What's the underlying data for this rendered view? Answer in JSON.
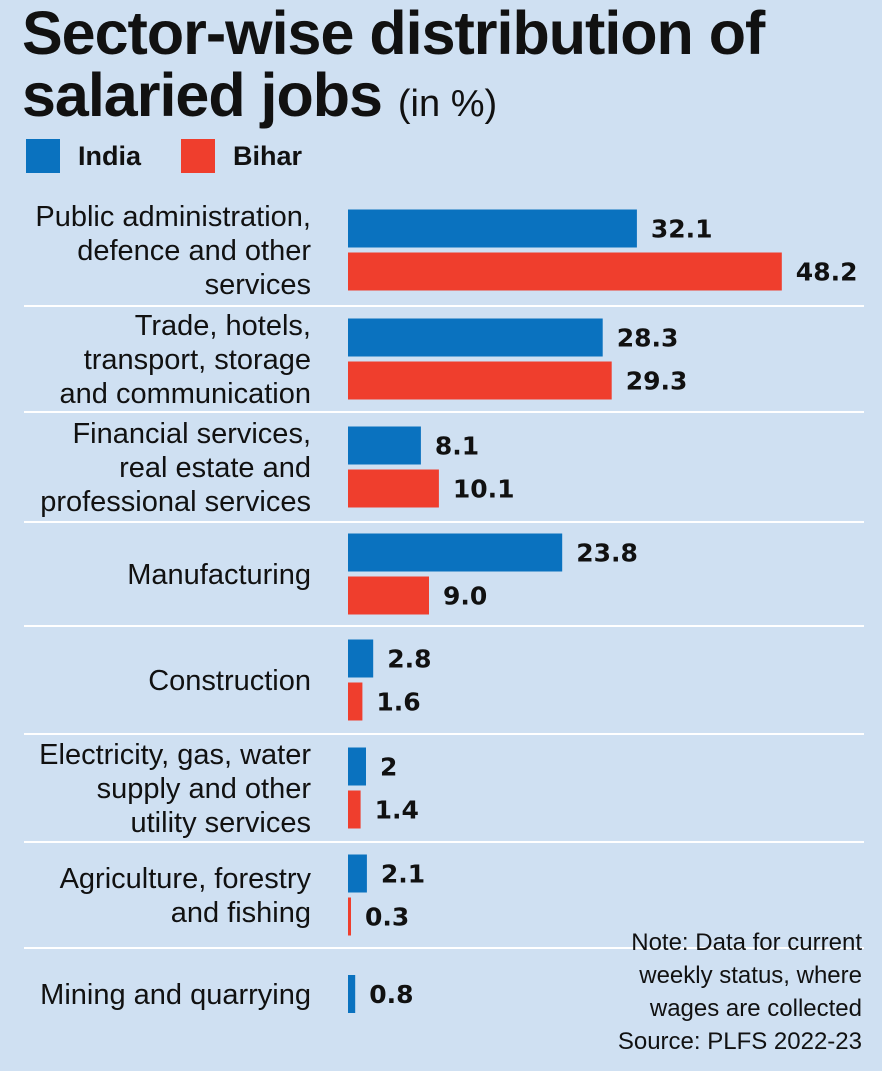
{
  "title": {
    "main": "Sector-wise distribution of salaried jobs",
    "unit": "(in %)"
  },
  "legend": {
    "india": "India",
    "bihar": "Bihar"
  },
  "colors": {
    "india": "#0a72bf",
    "bihar": "#ef3e2d",
    "background": "#cfe0f2",
    "divider": "#ffffff"
  },
  "note": {
    "lines": [
      "Note: Data for current",
      "weekly status, where",
      "wages are collected"
    ],
    "source": "Source: PLFS 2022-23"
  },
  "chart_data": {
    "type": "bar",
    "orientation": "horizontal",
    "title": "Sector-wise distribution of salaried jobs (in %)",
    "categories": [
      "Public administration, defence and other services",
      "Trade, hotels, transport, storage and communication",
      "Financial services, real estate and professional services",
      "Manufacturing",
      "Construction",
      "Electricity, gas, water supply and other utility services",
      "Agriculture, forestry and fishing",
      "Mining and quarrying"
    ],
    "category_lines": [
      [
        "Public administration,",
        "defence and other",
        "services"
      ],
      [
        "Trade, hotels,",
        "transport, storage",
        "and communication"
      ],
      [
        "Financial services,",
        "real estate and",
        "professional services"
      ],
      [
        "Manufacturing"
      ],
      [
        "Construction"
      ],
      [
        "Electricity, gas, water",
        "supply and other",
        "utility services"
      ],
      [
        "Agriculture, forestry",
        "and fishing"
      ],
      [
        "Mining and quarrying"
      ]
    ],
    "series": [
      {
        "name": "India",
        "values": [
          32.1,
          28.3,
          8.1,
          23.8,
          2.8,
          2,
          2.1,
          0.8
        ],
        "labels": [
          "32.1",
          "28.3",
          "8.1",
          "23.8",
          "2.8",
          "2",
          "2.1",
          "0.8"
        ]
      },
      {
        "name": "Bihar",
        "values": [
          48.2,
          29.3,
          10.1,
          9.0,
          1.6,
          1.4,
          0.3,
          null
        ],
        "labels": [
          "48.2",
          "29.3",
          "10.1",
          "9.0",
          "1.6",
          "1.4",
          "0.3",
          ""
        ]
      }
    ],
    "legend_position": "top-left",
    "grid": false
  }
}
